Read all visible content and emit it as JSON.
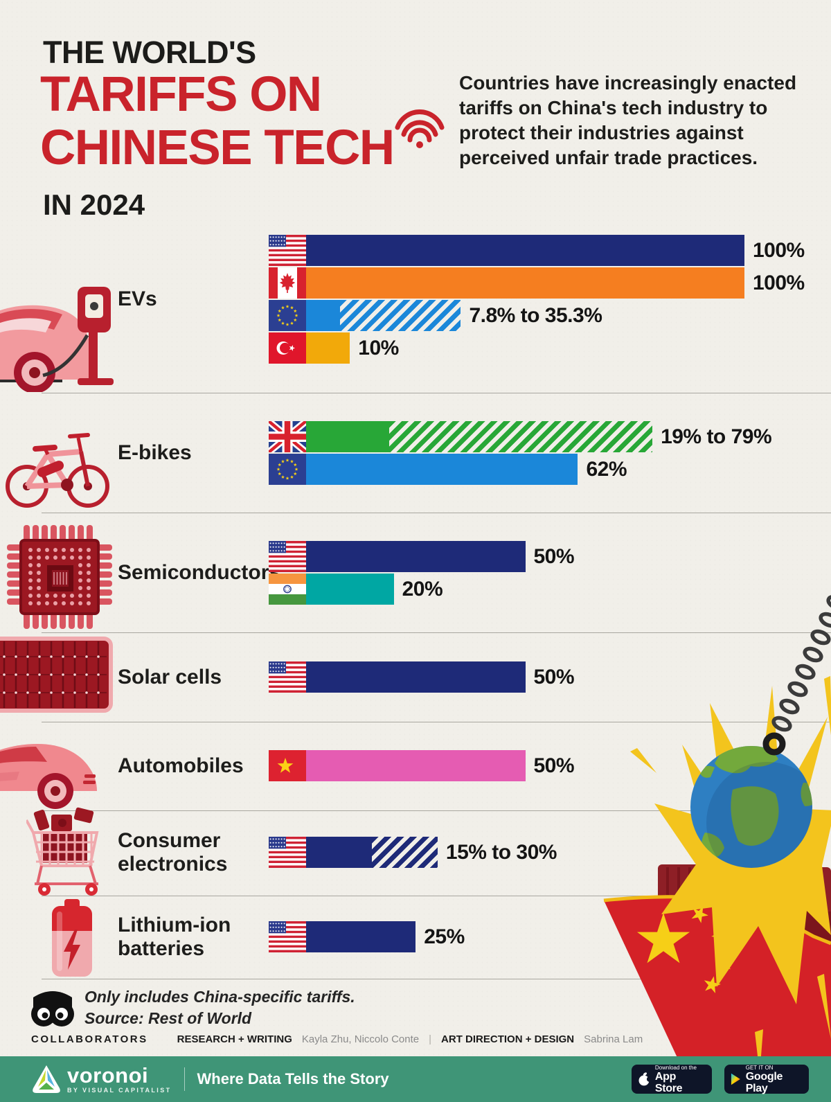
{
  "header": {
    "kicker": "THE WORLD'S",
    "title_line1": "TARIFFS ON",
    "title_line2": "CHINESE TECH",
    "year": "IN 2024",
    "intro": "Countries have increasingly enacted tariffs on China's tech industry to protect their industries against perceived unfair trade practices.",
    "accent_color": "#c9232b"
  },
  "chart_data": {
    "type": "bar",
    "unit": "tariff rate (%)",
    "max_value": 100,
    "legend_position": "none",
    "grid": "section dividers only",
    "sections": [
      {
        "category": "EVs",
        "icon": "ev-charging-icon",
        "rows": [
          {
            "country": "United States",
            "flag": "us",
            "value_label": "100%",
            "solid_pct": 100,
            "total_pct": 100,
            "color": "#1e2a78"
          },
          {
            "country": "Canada",
            "flag": "ca",
            "value_label": "100%",
            "solid_pct": 100,
            "total_pct": 100,
            "color": "#f57e20"
          },
          {
            "country": "European Union",
            "flag": "eu",
            "value_label": "7.8% to 35.3%",
            "solid_pct": 7.8,
            "total_pct": 35.3,
            "color": "#1b87d9"
          },
          {
            "country": "Turkey",
            "flag": "tr",
            "value_label": "10%",
            "solid_pct": 10,
            "total_pct": 10,
            "color": "#f2a90a"
          }
        ]
      },
      {
        "category": "E-bikes",
        "icon": "ebike-icon",
        "rows": [
          {
            "country": "United Kingdom",
            "flag": "uk",
            "value_label": "19% to 79%",
            "solid_pct": 19,
            "total_pct": 79,
            "color": "#28a737"
          },
          {
            "country": "European Union",
            "flag": "eu",
            "value_label": "62%",
            "solid_pct": 62,
            "total_pct": 62,
            "color": "#1b87d9"
          }
        ]
      },
      {
        "category": "Semiconductors",
        "icon": "semiconductor-icon",
        "rows": [
          {
            "country": "United States",
            "flag": "us",
            "value_label": "50%",
            "solid_pct": 50,
            "total_pct": 50,
            "color": "#1e2a78"
          },
          {
            "country": "India",
            "flag": "in",
            "value_label": "20%",
            "solid_pct": 20,
            "total_pct": 20,
            "color": "#00a7a3"
          }
        ]
      },
      {
        "category": "Solar cells",
        "icon": "solar-icon",
        "rows": [
          {
            "country": "United States",
            "flag": "us",
            "value_label": "50%",
            "solid_pct": 50,
            "total_pct": 50,
            "color": "#1e2a78"
          }
        ]
      },
      {
        "category": "Automobiles",
        "icon": "automobile-icon",
        "rows": [
          {
            "country": "Vietnam",
            "flag": "vn",
            "value_label": "50%",
            "solid_pct": 50,
            "total_pct": 50,
            "color": "#e55cb2"
          }
        ]
      },
      {
        "category": "Consumer electronics",
        "icon": "consumer-electronics-icon",
        "rows": [
          {
            "country": "United States",
            "flag": "us",
            "value_label": "15% to 30%",
            "solid_pct": 15,
            "total_pct": 30,
            "color": "#1e2a78"
          }
        ]
      },
      {
        "category": "Lithium-ion batteries",
        "icon": "battery-icon",
        "rows": [
          {
            "country": "United States",
            "flag": "us",
            "value_label": "25%",
            "solid_pct": 25,
            "total_pct": 25,
            "color": "#1e2a78"
          }
        ]
      }
    ],
    "footnote": "Only includes China-specific tariffs.",
    "source": "Source: Rest of World"
  },
  "collaborators": {
    "label": "COLLABORATORS",
    "research_label": "RESEARCH + WRITING",
    "research_names": "Kayla Zhu, Niccolo Conte",
    "separator": "|",
    "design_label": "ART DIRECTION + DESIGN",
    "design_name": "Sabrina Lam"
  },
  "footer": {
    "brand": "voronoi",
    "brand_sub": "BY VISUAL CAPITALIST",
    "tagline": "Where Data Tells the Story",
    "bg_color": "#3f9577",
    "appstore": {
      "line1": "Download on the",
      "line2": "App Store"
    },
    "googleplay": {
      "line1": "GET IT ON",
      "line2": "Google Play"
    }
  }
}
